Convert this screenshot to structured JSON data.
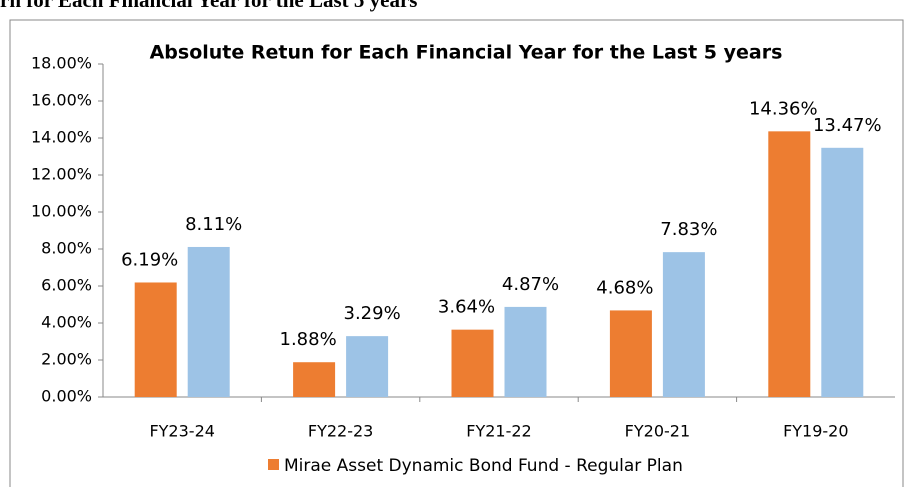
{
  "header": {
    "title": "rn for Each Financial Year for the Last 5 years"
  },
  "chart_data": {
    "type": "bar",
    "title": "Absolute Retun for Each Financial Year for the Last 5 years",
    "categories": [
      "FY23-24",
      "FY22-23",
      "FY21-22",
      "FY20-21",
      "FY19-20"
    ],
    "series": [
      {
        "name": "Mirae Asset Dynamic Bond Fund - Regular Plan",
        "color": "#ed7d31",
        "values": [
          6.19,
          1.88,
          3.64,
          4.68,
          14.36
        ],
        "value_labels": [
          "6.19%",
          "1.88%",
          "3.64%",
          "4.68%",
          "14.36%"
        ]
      },
      {
        "color": "#9dc3e6",
        "values": [
          8.11,
          3.29,
          4.87,
          7.83,
          13.47
        ],
        "value_labels": [
          "8.11%",
          "3.29%",
          "4.87%",
          "7.83%",
          "13.47%"
        ]
      }
    ],
    "ylim": [
      0,
      18
    ],
    "yticks": [
      {
        "value": 0,
        "label": "0.00%"
      },
      {
        "value": 2,
        "label": "2.00%"
      },
      {
        "value": 4,
        "label": "4.00%"
      },
      {
        "value": 6,
        "label": "6.00%"
      },
      {
        "value": 8,
        "label": "8.00%"
      },
      {
        "value": 10,
        "label": "10.00%"
      },
      {
        "value": 12,
        "label": "12.00%"
      },
      {
        "value": 14,
        "label": "14.00%"
      },
      {
        "value": 16,
        "label": "16.00%"
      },
      {
        "value": 18,
        "label": "18.00%"
      }
    ],
    "grid": false,
    "legend": "bottom"
  }
}
